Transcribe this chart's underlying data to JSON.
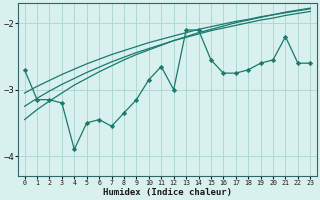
{
  "xlabel": "Humidex (Indice chaleur)",
  "bg_color": "#d8f0ee",
  "grid_color": "#b0d8d4",
  "line_color": "#1a7a6e",
  "x": [
    0,
    1,
    2,
    3,
    4,
    5,
    6,
    7,
    8,
    9,
    10,
    11,
    12,
    13,
    14,
    15,
    16,
    17,
    18,
    19,
    20,
    21,
    22,
    23
  ],
  "y_main": [
    -2.7,
    -3.15,
    -3.15,
    -3.2,
    -3.9,
    -3.5,
    -3.45,
    -3.55,
    -3.35,
    -3.15,
    -2.85,
    -2.65,
    -3.0,
    -2.1,
    -2.1,
    -2.55,
    -2.75,
    -2.75,
    -2.7,
    -2.6,
    -2.55,
    -2.2,
    -2.6,
    -2.6
  ],
  "y_trend1": [
    -3.25,
    -3.13,
    -3.02,
    -2.92,
    -2.83,
    -2.74,
    -2.66,
    -2.58,
    -2.51,
    -2.44,
    -2.38,
    -2.32,
    -2.26,
    -2.21,
    -2.16,
    -2.11,
    -2.07,
    -2.03,
    -1.99,
    -1.95,
    -1.92,
    -1.88,
    -1.85,
    -1.82
  ],
  "y_trend2": [
    -3.05,
    -2.95,
    -2.86,
    -2.77,
    -2.69,
    -2.61,
    -2.54,
    -2.47,
    -2.41,
    -2.35,
    -2.29,
    -2.24,
    -2.19,
    -2.14,
    -2.09,
    -2.05,
    -2.01,
    -1.97,
    -1.94,
    -1.9,
    -1.87,
    -1.84,
    -1.81,
    -1.78
  ],
  "y_trend3": [
    -3.45,
    -3.3,
    -3.17,
    -3.05,
    -2.93,
    -2.83,
    -2.73,
    -2.64,
    -2.55,
    -2.47,
    -2.4,
    -2.33,
    -2.26,
    -2.2,
    -2.14,
    -2.09,
    -2.04,
    -1.99,
    -1.95,
    -1.91,
    -1.87,
    -1.83,
    -1.8,
    -1.77
  ],
  "ylim": [
    -4.3,
    -1.7
  ],
  "xlim": [
    -0.5,
    23.5
  ],
  "yticks": [
    -4,
    -3,
    -2
  ],
  "xticks": [
    0,
    1,
    2,
    3,
    4,
    5,
    6,
    7,
    8,
    9,
    10,
    11,
    12,
    13,
    14,
    15,
    16,
    17,
    18,
    19,
    20,
    21,
    22,
    23
  ],
  "marker": "D",
  "markersize": 2.2,
  "spine_color": "#336666"
}
